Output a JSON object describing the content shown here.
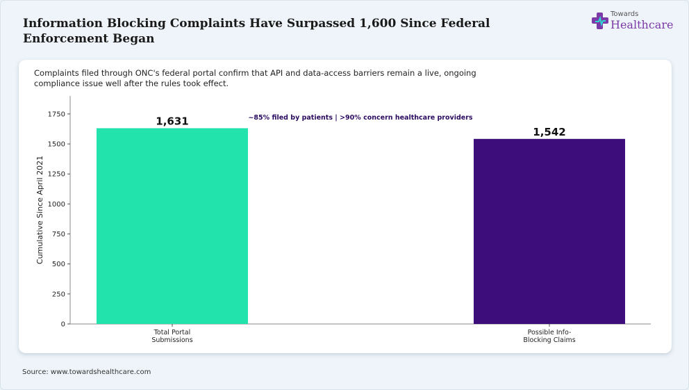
{
  "header": {
    "title": "Information Blocking Complaints Have Surpassed 1,600 Since Federal Enforcement Began"
  },
  "brand": {
    "small": "Towards",
    "big": "Healthcare"
  },
  "subtitle": "Complaints filed through ONC's federal portal confirm that API and data-access barriers remain a live, ongoing compliance issue well after the rules took effect.",
  "chart_data": {
    "type": "bar",
    "categories": [
      "Total Portal Submissions",
      "Possible Info-Blocking Claims"
    ],
    "category_label_lines": [
      [
        "Total Portal",
        "Submissions"
      ],
      [
        "Possible Info-",
        "Blocking Claims"
      ]
    ],
    "values": [
      1631,
      1542
    ],
    "value_labels": [
      "1,631",
      "1,542"
    ],
    "colors": [
      "#22e3ab",
      "#3e0d7c"
    ],
    "ylabel": "Cumulative Since April 2021",
    "ylim": [
      0,
      1900
    ],
    "yticks": [
      0,
      250,
      500,
      750,
      1000,
      1250,
      1500,
      1750
    ],
    "annotation": "~85% filed by patients | >90% concern healthcare providers",
    "annotation_color": "#2a0a5e",
    "grid": false
  },
  "source": "Source: www.towardshealthcare.com"
}
